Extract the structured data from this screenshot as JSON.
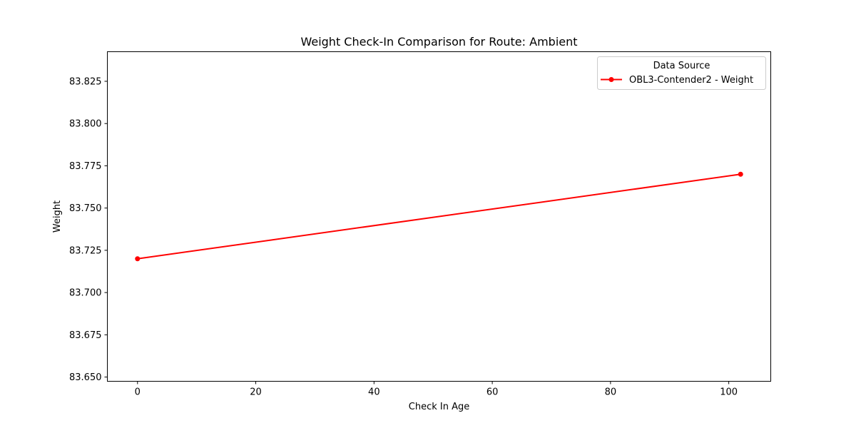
{
  "chart_data": {
    "type": "line",
    "title": "Weight Check-In Comparison for Route: Ambient",
    "xlabel": "Check In Age",
    "ylabel": "Weight",
    "xlim": [
      -5.1,
      107.1
    ],
    "ylim": [
      83.6475,
      83.8425
    ],
    "xticks": [
      0,
      20,
      40,
      60,
      80,
      100
    ],
    "xtick_labels": [
      "0",
      "20",
      "40",
      "60",
      "80",
      "100"
    ],
    "yticks": [
      83.65,
      83.675,
      83.7,
      83.725,
      83.75,
      83.775,
      83.8,
      83.825
    ],
    "ytick_labels": [
      "83.650",
      "83.675",
      "83.700",
      "83.725",
      "83.750",
      "83.775",
      "83.800",
      "83.825"
    ],
    "grid": false,
    "legend": {
      "title": "Data Source",
      "placement": "top-right"
    },
    "series": [
      {
        "name": "OBL3-Contender2 - Weight",
        "color": "#ff0000",
        "marker": "circle",
        "x": [
          0,
          102
        ],
        "y": [
          83.72,
          83.77
        ]
      }
    ]
  }
}
